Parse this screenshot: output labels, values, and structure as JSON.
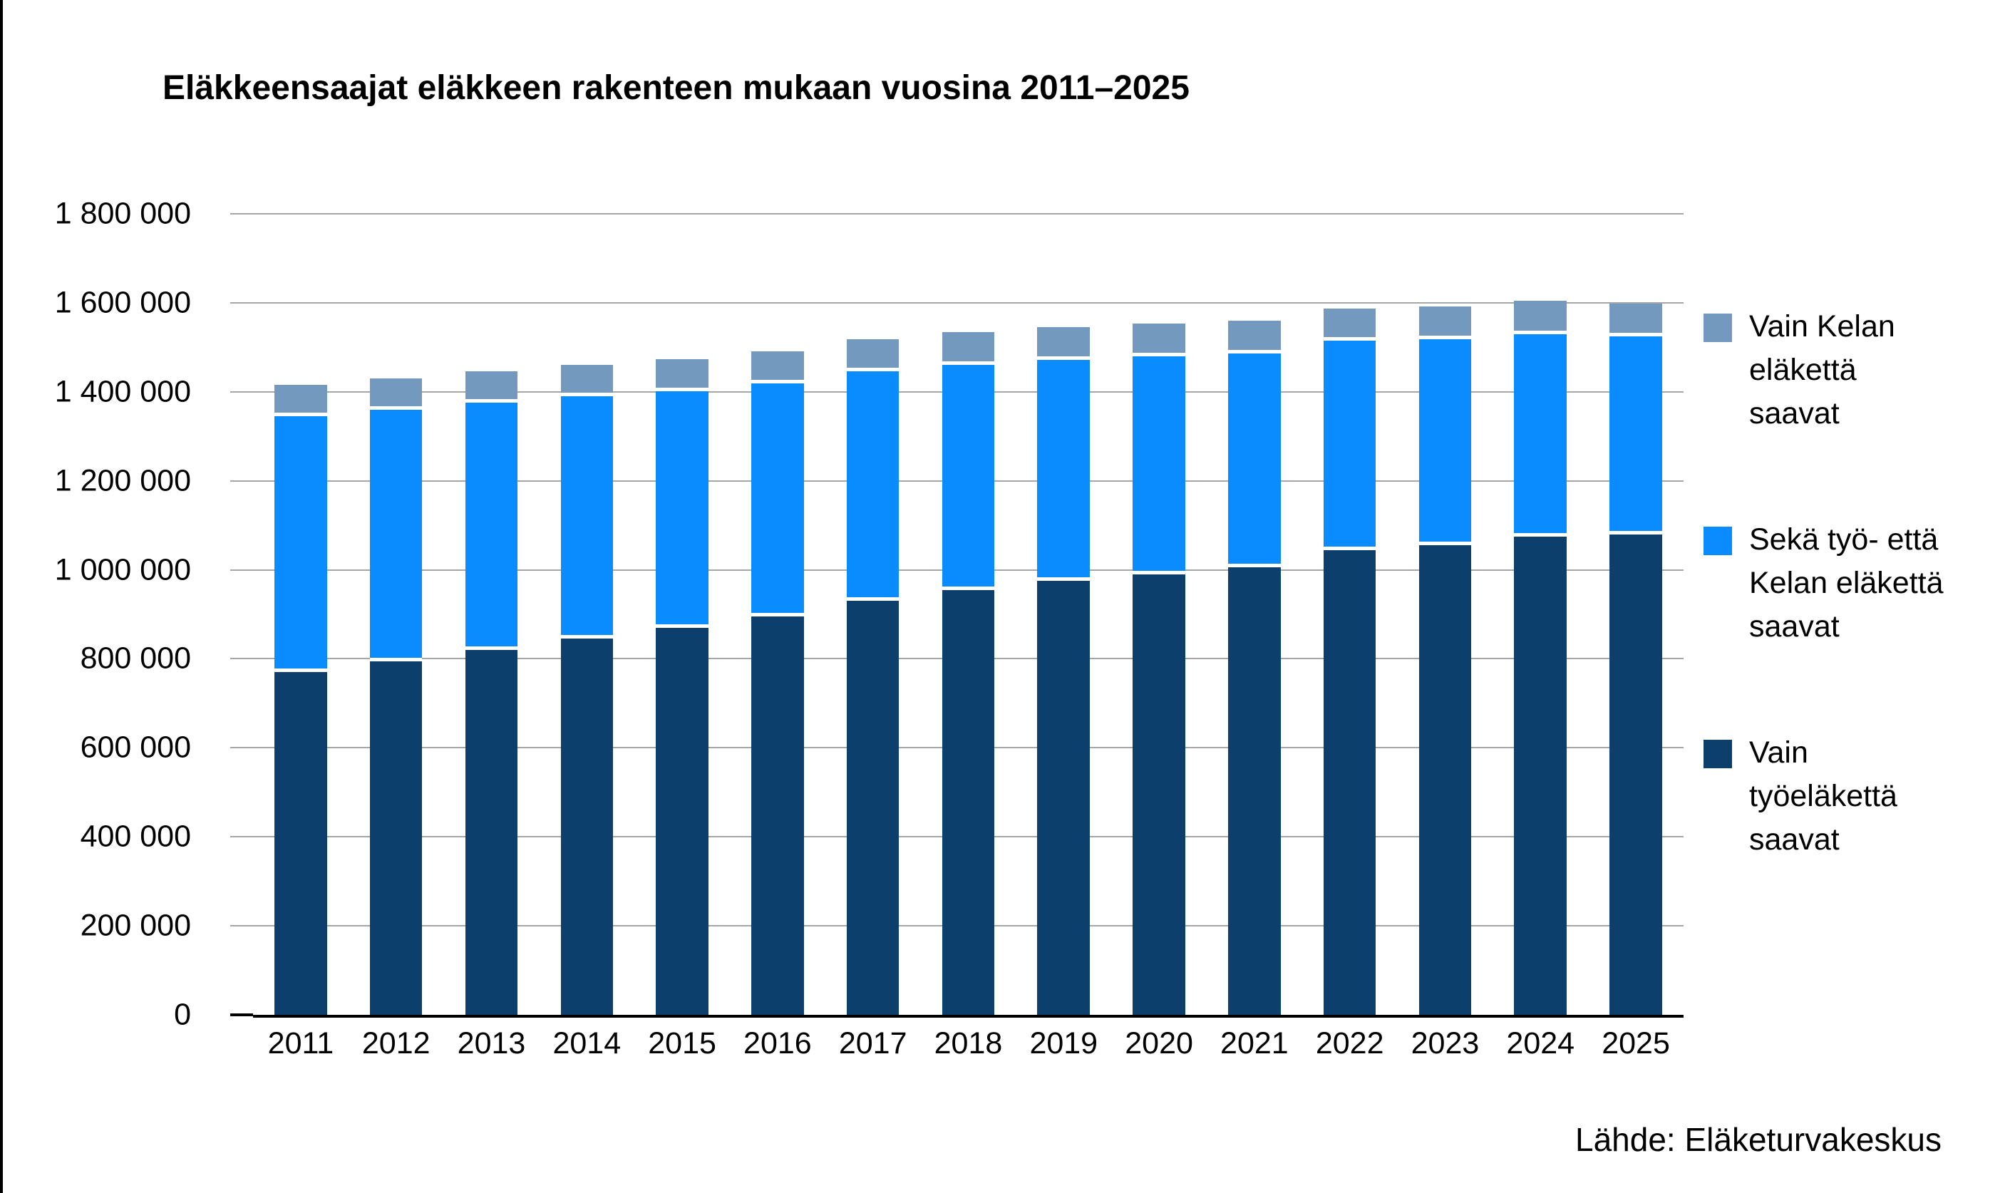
{
  "title": "Eläkkeensaajat eläkkeen rakenteen mukaan vuosina 2011–2025",
  "source": "Lähde: Eläketurvakeskus",
  "colors": {
    "only_work_pension": "#0D3F6D",
    "both_pensions": "#0A8CFF",
    "only_kela_pension": "#7399BF",
    "gridline": "#A6A6A6",
    "axis": "#000000",
    "background": "#FFFFFF"
  },
  "y_axis": {
    "min": 0,
    "max": 1800000,
    "step": 200000,
    "tick_labels": [
      "1 800 000",
      "1 600 000",
      "1 400 000",
      "1 200 000",
      "1 000 000",
      "800 000",
      "600 000",
      "400 000",
      "200 000",
      "0"
    ]
  },
  "legend": {
    "items": [
      {
        "label": "Vain Kelan\neläkettä\nsaavat",
        "color": "#7399BF"
      },
      {
        "label": "Sekä työ- että\nKelan eläkettä\nsaavat",
        "color": "#0A8CFF"
      },
      {
        "label": "Vain\ntyöeläkettä\nsaavat",
        "color": "#0D3F6D"
      }
    ]
  },
  "chart_data": {
    "type": "bar",
    "stacked": true,
    "grid": true,
    "legend_position": "right",
    "title": "Eläkkeensaajat eläkkeen rakenteen mukaan vuosina 2011–2025",
    "xlabel": "",
    "ylabel": "",
    "ylim": [
      0,
      1800000
    ],
    "categories": [
      "2011",
      "2012",
      "2013",
      "2014",
      "2015",
      "2016",
      "2017",
      "2018",
      "2019",
      "2020",
      "2021",
      "2022",
      "2023",
      "2024",
      "2025"
    ],
    "series": [
      {
        "name": "Vain työeläkettä saavat",
        "color": "#0D3F6D",
        "values": [
          770000,
          795000,
          820000,
          845000,
          870000,
          895000,
          930000,
          955000,
          975000,
          990000,
          1005000,
          1045000,
          1055000,
          1075000,
          1080000
        ]
      },
      {
        "name": "Sekä työ- että Kelan eläkettä saavat",
        "color": "#0A8CFF",
        "values": [
          575000,
          565000,
          555000,
          545000,
          532000,
          524000,
          516000,
          506000,
          497000,
          489000,
          481000,
          470000,
          464000,
          455000,
          445000
        ]
      },
      {
        "name": "Vain Kelan eläkettä saavat",
        "color": "#7399BF",
        "values": [
          70000,
          70000,
          71000,
          71000,
          72000,
          72000,
          72000,
          73000,
          74000,
          74000,
          74000,
          72000,
          73000,
          75000,
          74000
        ]
      }
    ]
  }
}
